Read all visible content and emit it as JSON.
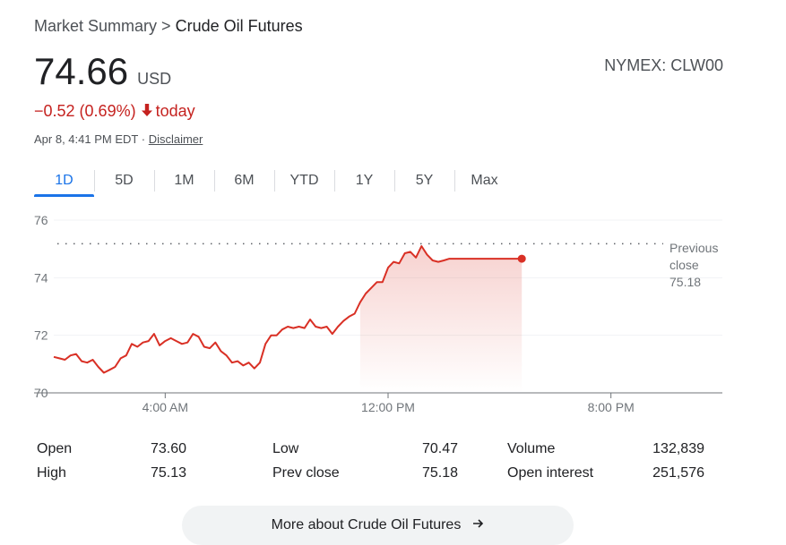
{
  "breadcrumb": {
    "root": "Market Summary",
    "sep": ">",
    "current": "Crude Oil Futures"
  },
  "quote": {
    "price": "74.66",
    "currency": "USD",
    "ticker": "NYMEX: CLW00",
    "change": "−0.52 (0.69%)",
    "change_period": "today",
    "timestamp": "Apr 8, 4:41 PM EDT",
    "separator": "·",
    "disclaimer": "Disclaimer"
  },
  "ranges": [
    "1D",
    "5D",
    "1M",
    "6M",
    "YTD",
    "1Y",
    "5Y",
    "Max"
  ],
  "active_range": "1D",
  "colors": {
    "down": "#d93025",
    "accent": "#1a73e8",
    "text": "#202124",
    "muted": "#4d5156"
  },
  "chart_data": {
    "type": "line",
    "y_ticks": [
      "76",
      "74",
      "72",
      "70"
    ],
    "x_ticks": [
      "4:00 AM",
      "12:00 PM",
      "8:00 PM"
    ],
    "ylim": [
      70,
      76
    ],
    "xlim_hours": [
      0,
      24
    ],
    "x_tick_hours": [
      4,
      12,
      20
    ],
    "previous_close": {
      "value": 75.18,
      "label_line1": "Previous",
      "label_line2": "close",
      "label_value": "75.18"
    },
    "series": [
      {
        "x_hours": [
          0.0,
          0.2,
          0.4,
          0.6,
          0.8,
          1.0,
          1.2,
          1.4,
          1.6,
          1.8,
          2.0,
          2.2,
          2.4,
          2.6,
          2.8,
          3.0,
          3.2,
          3.4,
          3.6,
          3.8,
          4.0,
          4.2,
          4.4,
          4.6,
          4.8,
          5.0,
          5.2,
          5.4,
          5.6,
          5.8,
          6.0,
          6.2,
          6.4,
          6.6,
          6.8,
          7.0,
          7.2,
          7.4,
          7.6,
          7.8,
          8.0,
          8.2,
          8.4,
          8.6,
          8.8,
          9.0,
          9.2,
          9.4,
          9.6,
          9.8,
          10.0,
          10.2,
          10.4,
          10.6,
          10.8,
          11.0,
          11.2,
          11.4,
          11.6,
          11.8,
          12.0,
          12.2,
          12.4,
          12.6,
          12.8,
          13.0,
          13.2,
          13.4,
          13.6,
          13.8,
          14.0,
          14.2,
          14.4,
          14.6,
          14.8,
          15.0,
          15.2,
          15.4,
          15.6,
          15.8,
          16.0,
          16.2,
          16.4,
          16.6,
          16.8
        ],
        "values": [
          71.25,
          71.2,
          71.15,
          71.3,
          71.35,
          71.1,
          71.05,
          71.15,
          70.9,
          70.7,
          70.8,
          70.9,
          71.2,
          71.3,
          71.7,
          71.6,
          71.75,
          71.8,
          72.05,
          71.65,
          71.8,
          71.9,
          71.8,
          71.7,
          71.75,
          72.05,
          71.95,
          71.6,
          71.55,
          71.75,
          71.45,
          71.3,
          71.05,
          71.1,
          70.95,
          71.05,
          70.85,
          71.05,
          71.7,
          72.0,
          72.0,
          72.2,
          72.3,
          72.25,
          72.3,
          72.25,
          72.55,
          72.3,
          72.25,
          72.3,
          72.05,
          72.3,
          72.5,
          72.65,
          72.75,
          73.15,
          73.45,
          73.65,
          73.85,
          73.85,
          74.35,
          74.55,
          74.5,
          74.85,
          74.9,
          74.7,
          75.1,
          74.8,
          74.6,
          74.55,
          74.6,
          74.66,
          74.66,
          74.66,
          74.66,
          74.66,
          74.66,
          74.66,
          74.66,
          74.66,
          74.66,
          74.66,
          74.66,
          74.66,
          74.66
        ]
      }
    ]
  },
  "stats": [
    {
      "label": "Open",
      "value": "73.60"
    },
    {
      "label": "High",
      "value": "75.13"
    },
    {
      "label": "Low",
      "value": "70.47"
    },
    {
      "label": "Prev close",
      "value": "75.18"
    },
    {
      "label": "Volume",
      "value": "132,839"
    },
    {
      "label": "Open interest",
      "value": "251,576"
    }
  ],
  "more_button": {
    "label": "More about Crude Oil Futures"
  }
}
